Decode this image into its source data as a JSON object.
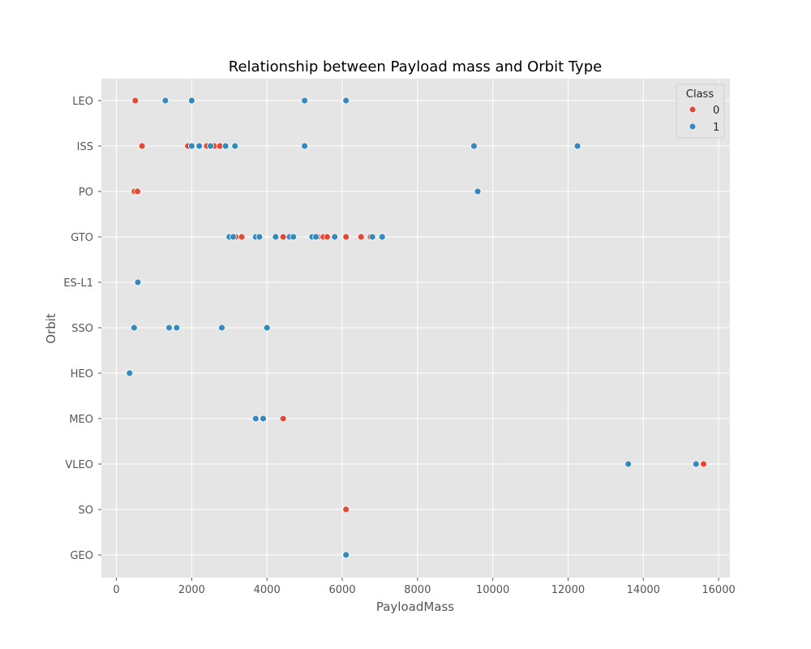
{
  "chart_data": {
    "type": "scatter",
    "title": "Relationship between Payload mass and Orbit Type",
    "xlabel": "PayloadMass",
    "ylabel": "Orbit",
    "xlim": [
      -400,
      16300
    ],
    "x_ticks": [
      0,
      2000,
      4000,
      6000,
      8000,
      10000,
      12000,
      14000,
      16000
    ],
    "categories": [
      "LEO",
      "ISS",
      "PO",
      "GTO",
      "ES-L1",
      "SSO",
      "HEO",
      "MEO",
      "VLEO",
      "SO",
      "GEO"
    ],
    "grid": true,
    "legend": {
      "title": "Class",
      "position": "top-right"
    },
    "series": [
      {
        "name": "0",
        "color": "#E24A33",
        "points": [
          {
            "x": 500,
            "y": "LEO"
          },
          {
            "x": 680,
            "y": "ISS"
          },
          {
            "x": 1900,
            "y": "ISS"
          },
          {
            "x": 2400,
            "y": "ISS"
          },
          {
            "x": 2600,
            "y": "ISS"
          },
          {
            "x": 2750,
            "y": "ISS"
          },
          {
            "x": 480,
            "y": "PO"
          },
          {
            "x": 560,
            "y": "PO"
          },
          {
            "x": 3170,
            "y": "GTO"
          },
          {
            "x": 3330,
            "y": "GTO"
          },
          {
            "x": 4430,
            "y": "GTO"
          },
          {
            "x": 5350,
            "y": "GTO"
          },
          {
            "x": 5500,
            "y": "GTO"
          },
          {
            "x": 5600,
            "y": "GTO"
          },
          {
            "x": 6100,
            "y": "GTO"
          },
          {
            "x": 6500,
            "y": "GTO"
          },
          {
            "x": 6750,
            "y": "GTO"
          },
          {
            "x": 4430,
            "y": "MEO"
          },
          {
            "x": 15600,
            "y": "VLEO"
          },
          {
            "x": 6100,
            "y": "SO"
          }
        ]
      },
      {
        "name": "1",
        "color": "#348ABD",
        "points": [
          {
            "x": 1300,
            "y": "LEO"
          },
          {
            "x": 2000,
            "y": "LEO"
          },
          {
            "x": 5000,
            "y": "LEO"
          },
          {
            "x": 6100,
            "y": "LEO"
          },
          {
            "x": 2000,
            "y": "ISS"
          },
          {
            "x": 2200,
            "y": "ISS"
          },
          {
            "x": 2500,
            "y": "ISS"
          },
          {
            "x": 2900,
            "y": "ISS"
          },
          {
            "x": 3150,
            "y": "ISS"
          },
          {
            "x": 5000,
            "y": "ISS"
          },
          {
            "x": 9500,
            "y": "ISS"
          },
          {
            "x": 12250,
            "y": "ISS"
          },
          {
            "x": 9600,
            "y": "PO"
          },
          {
            "x": 3000,
            "y": "GTO"
          },
          {
            "x": 3100,
            "y": "GTO"
          },
          {
            "x": 3700,
            "y": "GTO"
          },
          {
            "x": 3800,
            "y": "GTO"
          },
          {
            "x": 4230,
            "y": "GTO"
          },
          {
            "x": 4600,
            "y": "GTO"
          },
          {
            "x": 4700,
            "y": "GTO"
          },
          {
            "x": 5200,
            "y": "GTO"
          },
          {
            "x": 5300,
            "y": "GTO"
          },
          {
            "x": 5800,
            "y": "GTO"
          },
          {
            "x": 6800,
            "y": "GTO"
          },
          {
            "x": 7060,
            "y": "GTO"
          },
          {
            "x": 570,
            "y": "ES-L1"
          },
          {
            "x": 470,
            "y": "SSO"
          },
          {
            "x": 1400,
            "y": "SSO"
          },
          {
            "x": 1600,
            "y": "SSO"
          },
          {
            "x": 2800,
            "y": "SSO"
          },
          {
            "x": 4000,
            "y": "SSO"
          },
          {
            "x": 350,
            "y": "HEO"
          },
          {
            "x": 3700,
            "y": "MEO"
          },
          {
            "x": 3900,
            "y": "MEO"
          },
          {
            "x": 13600,
            "y": "VLEO"
          },
          {
            "x": 15400,
            "y": "VLEO"
          },
          {
            "x": 6100,
            "y": "GEO"
          }
        ]
      }
    ]
  }
}
